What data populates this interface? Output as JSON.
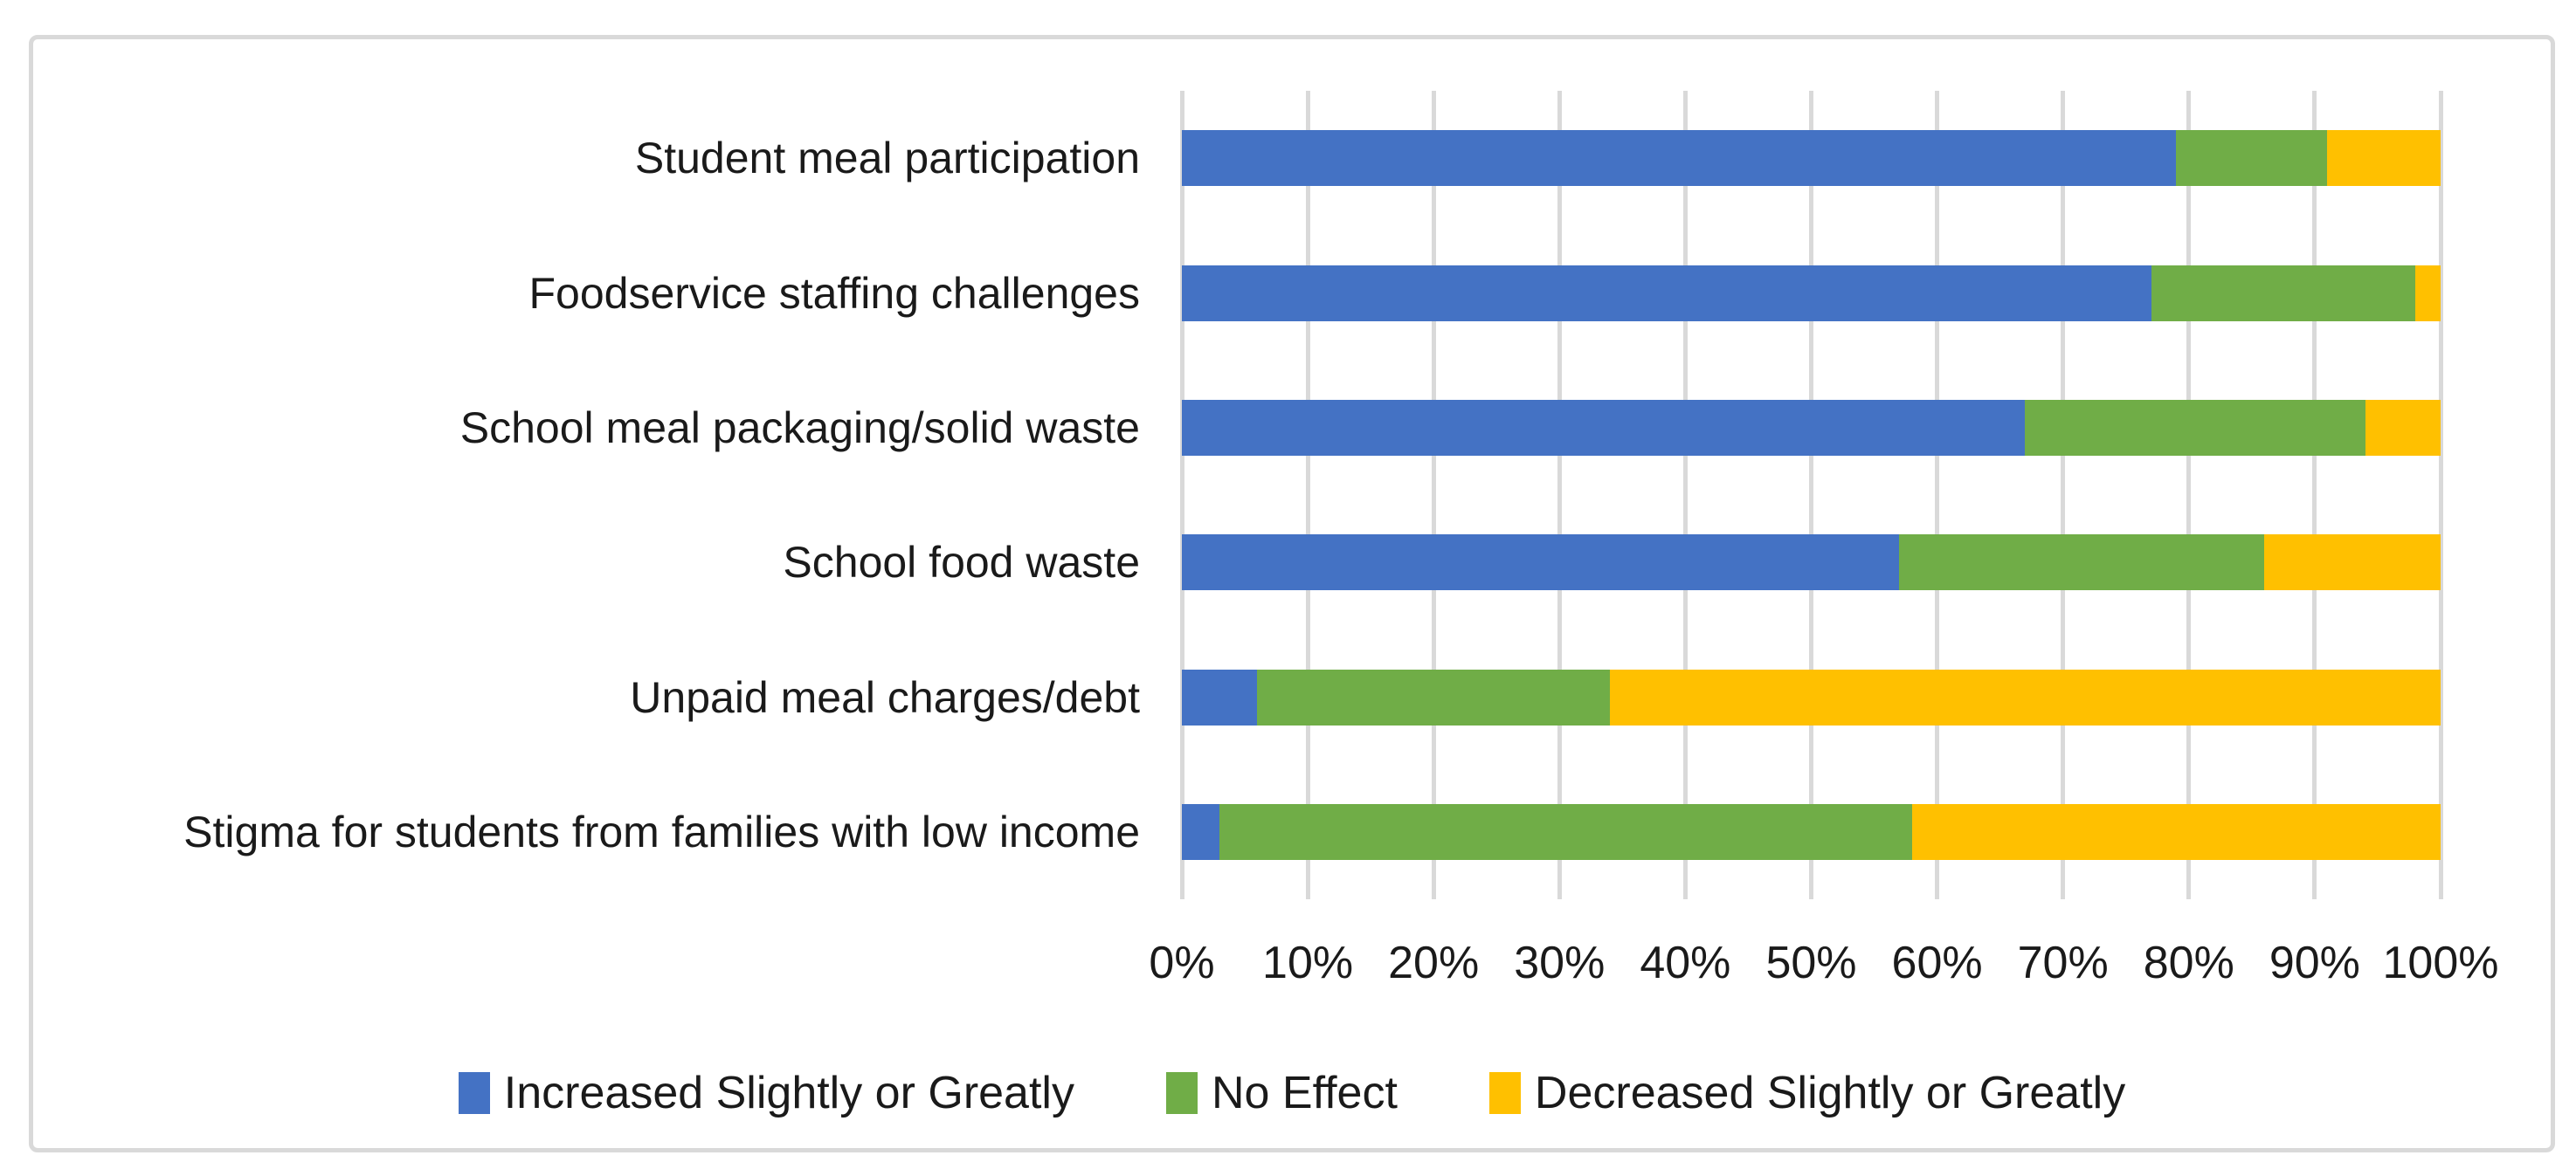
{
  "chart_data": {
    "type": "bar",
    "orientation": "horizontal",
    "stacked": true,
    "title": "",
    "categories": [
      "Student meal participation",
      "Foodservice staffing challenges",
      "School meal packaging/solid waste",
      "School food waste",
      "Unpaid meal charges/debt",
      "Stigma for students from families with low income"
    ],
    "series": [
      {
        "name": "Increased Slightly or Greatly",
        "color": "#4472C4",
        "values": [
          79,
          77,
          67,
          57,
          6,
          3
        ]
      },
      {
        "name": "No Effect",
        "color": "#70AD47",
        "values": [
          12,
          21,
          27,
          29,
          28,
          55
        ]
      },
      {
        "name": "Decreased Slightly or Greatly",
        "color": "#FFC000",
        "values": [
          9,
          2,
          6,
          14,
          66,
          42
        ]
      }
    ],
    "x_tick_labels": [
      "0%",
      "10%",
      "20%",
      "30%",
      "40%",
      "50%",
      "60%",
      "70%",
      "80%",
      "90%",
      "100%"
    ],
    "xlim": [
      0,
      100
    ],
    "gridlines": "vertical",
    "gridline_color": "#D9D9D9",
    "axis_text_color": "#1A1A1A",
    "legend_position": "bottom",
    "frame_border_color": "#D9D9D9",
    "background_color": "#FFFFFF"
  }
}
